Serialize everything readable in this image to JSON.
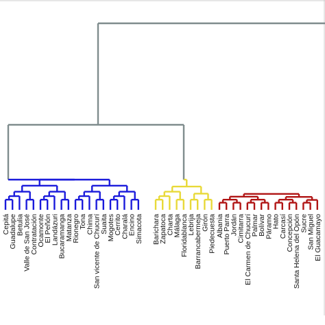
{
  "colors": {
    "background": "#ffffff",
    "top_links": "#7f8c8d",
    "cluster_blue": "#1a1adb",
    "cluster_yellow": "#e8d938",
    "cluster_red": "#b01414",
    "label_text": "#111111",
    "frame": "#cccccc"
  },
  "leaves": [
    {
      "label": "Cepitá",
      "cluster": "blue"
    },
    {
      "label": "Guadalupe",
      "cluster": "blue"
    },
    {
      "label": "Betulia",
      "cluster": "blue"
    },
    {
      "label": "Valle de San José",
      "cluster": "blue"
    },
    {
      "label": "Contratación",
      "cluster": "blue"
    },
    {
      "label": "Ocamonte",
      "cluster": "blue"
    },
    {
      "label": "El Peñón",
      "cluster": "blue"
    },
    {
      "label": "Landázuri",
      "cluster": "blue"
    },
    {
      "label": "Bucaramanga",
      "cluster": "blue"
    },
    {
      "label": "Matanza",
      "cluster": "blue"
    },
    {
      "label": "Rionegro",
      "cluster": "blue"
    },
    {
      "label": "Tona",
      "cluster": "blue"
    },
    {
      "label": "Chima",
      "cluster": "blue"
    },
    {
      "label": "San vicente de Chucurí",
      "cluster": "blue"
    },
    {
      "label": "Suaita",
      "cluster": "blue"
    },
    {
      "label": "Mogotes",
      "cluster": "blue"
    },
    {
      "label": "Cerrito",
      "cluster": "blue"
    },
    {
      "label": "Charalá",
      "cluster": "blue"
    },
    {
      "label": "Encino",
      "cluster": "blue"
    },
    {
      "label": "Simacota",
      "cluster": "blue"
    },
    {
      "label": "Barichara",
      "cluster": "yellow"
    },
    {
      "label": "Zapatoca",
      "cluster": "yellow"
    },
    {
      "label": "Charta",
      "cluster": "yellow"
    },
    {
      "label": "Málaga",
      "cluster": "yellow"
    },
    {
      "label": "Floridablanca",
      "cluster": "yellow"
    },
    {
      "label": "Lebrija",
      "cluster": "yellow"
    },
    {
      "label": "Barrancabermeja",
      "cluster": "yellow"
    },
    {
      "label": "Girón",
      "cluster": "yellow"
    },
    {
      "label": "Piedecuesta",
      "cluster": "yellow"
    },
    {
      "label": "Albania",
      "cluster": "red"
    },
    {
      "label": "Puerto Parra",
      "cluster": "red"
    },
    {
      "label": "Jordán",
      "cluster": "red"
    },
    {
      "label": "Cimitarra",
      "cluster": "red"
    },
    {
      "label": "El Carmen de Chucurí",
      "cluster": "red"
    },
    {
      "label": "Palmar",
      "cluster": "red"
    },
    {
      "label": "Bolívar",
      "cluster": "red"
    },
    {
      "label": "Páramo",
      "cluster": "red"
    },
    {
      "label": "Hato",
      "cluster": "red"
    },
    {
      "label": "Carcasí",
      "cluster": "red"
    },
    {
      "label": "Concepción",
      "cluster": "red"
    },
    {
      "label": "Santa Helena del Opón",
      "cluster": "red"
    },
    {
      "label": "Sucre",
      "cluster": "red"
    },
    {
      "label": "San Miguel",
      "cluster": "red"
    },
    {
      "label": "El Guacamayo",
      "cluster": "red"
    }
  ]
}
